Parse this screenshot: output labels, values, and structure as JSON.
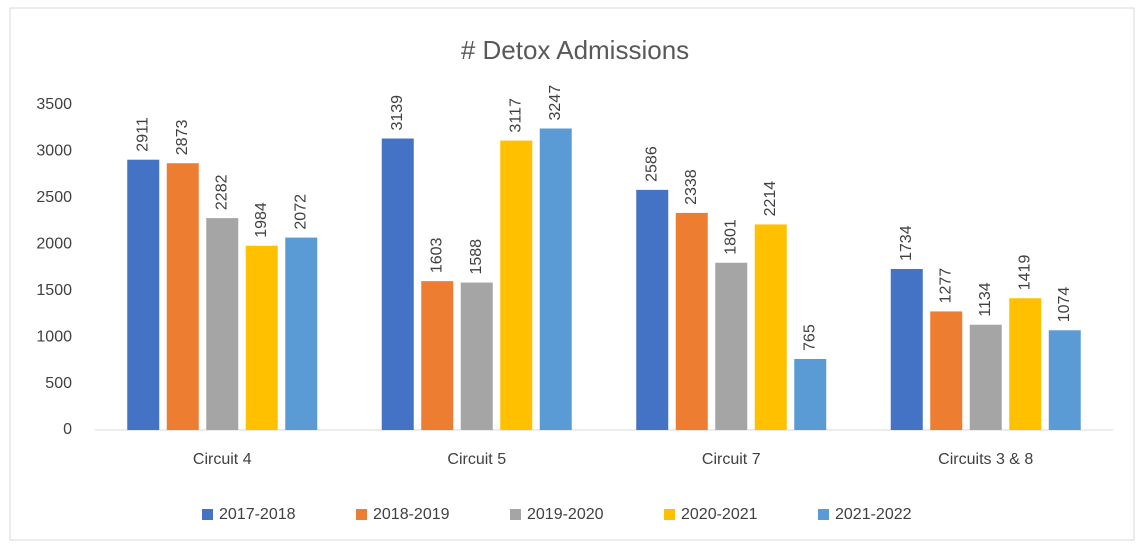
{
  "chart_data": {
    "type": "bar",
    "title": "# Detox Admissions",
    "categories": [
      "Circuit 4",
      "Circuit 5",
      "Circuit 7",
      "Circuits 3 & 8"
    ],
    "series": [
      {
        "name": "2017-2018",
        "color": "#4472c4",
        "values": [
          2911,
          3139,
          2586,
          1734
        ]
      },
      {
        "name": "2018-2019",
        "color": "#ed7d31",
        "values": [
          2873,
          1603,
          2338,
          1277
        ]
      },
      {
        "name": "2019-2020",
        "color": "#a5a5a5",
        "values": [
          2282,
          1588,
          1801,
          1134
        ]
      },
      {
        "name": "2020-2021",
        "color": "#ffc000",
        "values": [
          1984,
          3117,
          2214,
          1419
        ]
      },
      {
        "name": "2021-2022",
        "color": "#5b9bd5",
        "values": [
          2072,
          3247,
          765,
          1074
        ]
      }
    ],
    "ylim": [
      0,
      3500
    ],
    "yticks": [
      0,
      500,
      1000,
      1500,
      2000,
      2500,
      3000,
      3500
    ],
    "grid": false,
    "legend": "bottom"
  }
}
